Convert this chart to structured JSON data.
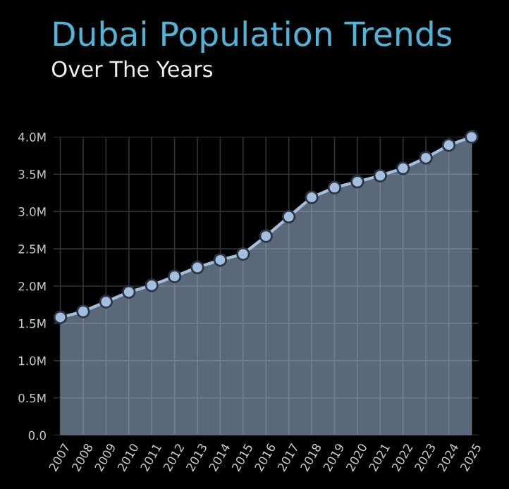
{
  "chart_data": {
    "type": "area",
    "title": "Dubai Population Trends",
    "subtitle": "Over The Years",
    "categories": [
      "2007",
      "2008",
      "2009",
      "2010",
      "2011",
      "2012",
      "2013",
      "2014",
      "2015",
      "2016",
      "2017",
      "2018",
      "2019",
      "2020",
      "2021",
      "2022",
      "2023",
      "2024",
      "2025"
    ],
    "series": [
      {
        "color": "#a3bfdf",
        "values": [
          1.58,
          1.66,
          1.79,
          1.92,
          2.01,
          2.13,
          2.25,
          2.35,
          2.43,
          2.67,
          2.93,
          3.19,
          3.32,
          3.4,
          3.48,
          3.58,
          3.72,
          3.89,
          4.0
        ]
      }
    ],
    "ylim": [
      0,
      4.0
    ],
    "yticks": [
      {
        "value": 0,
        "label": "0.0"
      },
      {
        "value": 0.5,
        "label": "0.5M"
      },
      {
        "value": 1.0,
        "label": "1.0M"
      },
      {
        "value": 1.5,
        "label": "1.5M"
      },
      {
        "value": 2.0,
        "label": "2.0M"
      },
      {
        "value": 2.5,
        "label": "2.5M"
      },
      {
        "value": 3.0,
        "label": "3.0M"
      },
      {
        "value": 3.5,
        "label": "3.5M"
      },
      {
        "value": 4.0,
        "label": "4.0M"
      }
    ],
    "grid": true,
    "marker": "circle",
    "line_style": "solid"
  }
}
